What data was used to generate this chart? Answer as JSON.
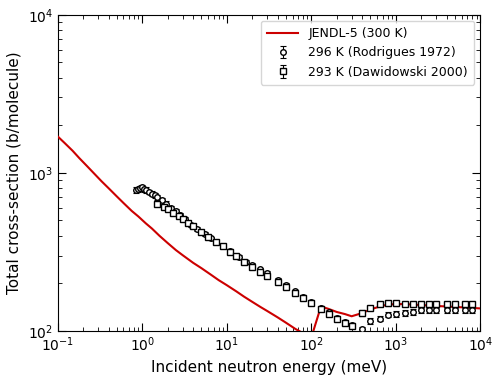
{
  "title": "",
  "xlabel": "Incident neutron energy (meV)",
  "ylabel": "Total cross-section (b/molecule)",
  "xlim": [
    0.1,
    10000
  ],
  "ylim": [
    100,
    10000
  ],
  "legend_entries": [
    "296 K (Rodrigues 1972)",
    "293 K (Dawidowski 2000)",
    "JENDL-5 (300 K)"
  ],
  "rodrigues_x": [
    0.85,
    0.9,
    0.95,
    1.0,
    1.05,
    1.1,
    1.2,
    1.3,
    1.4,
    1.5,
    1.7,
    1.9,
    2.2,
    2.5,
    2.8,
    3.2,
    3.8,
    4.5,
    5.5,
    6.5,
    7.5,
    9.0,
    11,
    14,
    17,
    20,
    25,
    30,
    40,
    50,
    65,
    80,
    100,
    130,
    160,
    200,
    250,
    300,
    400,
    500,
    650,
    800,
    1000,
    1300,
    1600,
    2000,
    2500,
    3000,
    4000,
    5000,
    6500,
    8000
  ],
  "rodrigues_y": [
    780,
    790,
    800,
    810,
    790,
    780,
    760,
    740,
    720,
    700,
    670,
    640,
    600,
    570,
    540,
    510,
    470,
    440,
    410,
    385,
    365,
    345,
    320,
    295,
    275,
    262,
    245,
    232,
    210,
    195,
    178,
    165,
    153,
    140,
    131,
    121,
    114,
    109,
    103,
    116,
    120,
    127,
    128,
    130,
    132,
    135,
    135,
    135,
    135,
    135,
    135,
    135
  ],
  "rodrigues_yerr": [
    30,
    30,
    30,
    30,
    30,
    30,
    25,
    25,
    25,
    25,
    20,
    20,
    18,
    18,
    18,
    15,
    15,
    12,
    12,
    10,
    10,
    10,
    8,
    8,
    8,
    7,
    7,
    7,
    6,
    6,
    5,
    5,
    5,
    5,
    4,
    4,
    4,
    4,
    3,
    5,
    5,
    5,
    5,
    5,
    5,
    5,
    5,
    5,
    5,
    5,
    5,
    5
  ],
  "dawidowski_x": [
    1.5,
    1.8,
    2.0,
    2.3,
    2.7,
    3.0,
    3.5,
    4.0,
    5.0,
    6.0,
    7.5,
    9.0,
    11,
    13,
    16,
    20,
    25,
    30,
    40,
    50,
    65,
    80,
    100,
    130,
    160,
    200,
    250,
    300,
    400,
    500,
    650,
    800,
    1000,
    1300,
    1600,
    2000,
    2500,
    3000,
    4000,
    5000,
    6500,
    8000
  ],
  "dawidowski_y": [
    640,
    610,
    590,
    560,
    530,
    510,
    480,
    460,
    420,
    395,
    365,
    345,
    318,
    298,
    274,
    254,
    237,
    224,
    203,
    190,
    173,
    162,
    150,
    138,
    129,
    120,
    113,
    108,
    130,
    140,
    148,
    150,
    150,
    148,
    148,
    148,
    148,
    148,
    148,
    148,
    148,
    148
  ],
  "dawidowski_yerr": [
    20,
    20,
    18,
    18,
    15,
    15,
    12,
    12,
    10,
    10,
    8,
    8,
    8,
    7,
    7,
    6,
    6,
    6,
    5,
    5,
    5,
    5,
    4,
    4,
    4,
    4,
    3,
    3,
    5,
    5,
    5,
    5,
    5,
    5,
    5,
    5,
    5,
    5,
    5,
    5,
    5,
    5
  ],
  "jendl_x": [
    0.1,
    0.12,
    0.15,
    0.18,
    0.22,
    0.27,
    0.33,
    0.4,
    0.5,
    0.6,
    0.75,
    0.9,
    1.1,
    1.3,
    1.6,
    2.0,
    2.5,
    3.0,
    4.0,
    5.0,
    6.5,
    8.0,
    10,
    13,
    16,
    20,
    25,
    30,
    40,
    50,
    65,
    80,
    100,
    130,
    160,
    200,
    250,
    300,
    400,
    500,
    650,
    800,
    1000,
    1300,
    1600,
    2000,
    2500,
    3000,
    4000,
    5000,
    6500,
    8000,
    10000
  ],
  "jendl_y": [
    1700,
    1550,
    1380,
    1240,
    1110,
    990,
    885,
    800,
    710,
    645,
    575,
    530,
    480,
    445,
    400,
    360,
    325,
    302,
    270,
    250,
    227,
    210,
    195,
    178,
    165,
    153,
    142,
    134,
    122,
    113,
    103,
    97,
    91,
    143,
    138,
    132,
    128,
    124,
    130,
    137,
    143,
    147,
    148,
    148,
    147,
    146,
    145,
    144,
    143,
    142,
    141,
    140,
    139
  ],
  "line_color": "#cc0000",
  "marker_color": "black",
  "bg_color": "#ffffff"
}
